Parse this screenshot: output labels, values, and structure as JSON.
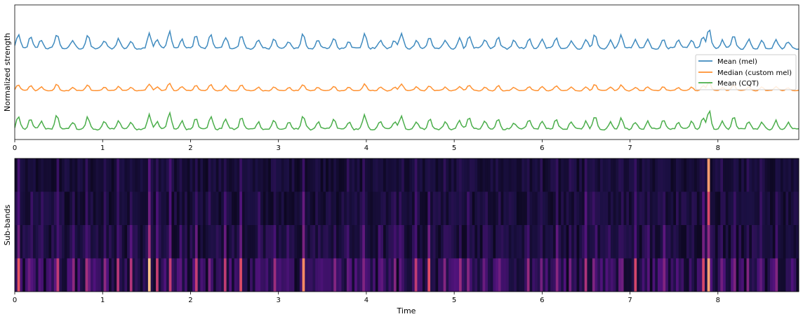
{
  "chart_data": [
    {
      "type": "line",
      "title": "",
      "xlabel": "",
      "ylabel": "Normalized strength",
      "xlim": [
        0,
        8.92
      ],
      "ylim": [
        0,
        1
      ],
      "x_ticks": [
        "0",
        "1",
        "2",
        "3",
        "4",
        "5",
        "6",
        "7",
        "8"
      ],
      "y_ticks_shown": false,
      "grid": false,
      "legend_position": "right",
      "series": [
        {
          "name": "Mean (mel)",
          "color": "#1f77b4",
          "baseline": 0.67,
          "peak_height": 0.13
        },
        {
          "name": "Median (custom mel)",
          "color": "#ff7f0e",
          "baseline": 0.36,
          "peak_height": 0.07
        },
        {
          "name": "Mean (CQT)",
          "color": "#2ca02c",
          "baseline": 0.07,
          "peak_height": 0.12
        }
      ],
      "onset_peaks": [
        {
          "t": 0.04,
          "s": 0.8
        },
        {
          "t": 0.18,
          "s": 0.65
        },
        {
          "t": 0.3,
          "s": 0.5
        },
        {
          "t": 0.48,
          "s": 0.85
        },
        {
          "t": 0.66,
          "s": 0.45
        },
        {
          "t": 0.83,
          "s": 0.75
        },
        {
          "t": 1.02,
          "s": 0.45
        },
        {
          "t": 1.18,
          "s": 0.55
        },
        {
          "t": 1.32,
          "s": 0.4
        },
        {
          "t": 1.53,
          "s": 0.9
        },
        {
          "t": 1.62,
          "s": 0.5
        },
        {
          "t": 1.76,
          "s": 1.0
        },
        {
          "t": 1.9,
          "s": 0.5
        },
        {
          "t": 2.06,
          "s": 0.75
        },
        {
          "t": 2.23,
          "s": 0.8
        },
        {
          "t": 2.4,
          "s": 0.65
        },
        {
          "t": 2.58,
          "s": 0.75
        },
        {
          "t": 2.77,
          "s": 0.45
        },
        {
          "t": 2.95,
          "s": 0.55
        },
        {
          "t": 3.12,
          "s": 0.4
        },
        {
          "t": 3.28,
          "s": 0.85
        },
        {
          "t": 3.45,
          "s": 0.45
        },
        {
          "t": 3.63,
          "s": 0.6
        },
        {
          "t": 3.8,
          "s": 0.45
        },
        {
          "t": 3.98,
          "s": 0.85
        },
        {
          "t": 4.16,
          "s": 0.5
        },
        {
          "t": 4.32,
          "s": 0.45
        },
        {
          "t": 4.4,
          "s": 0.85
        },
        {
          "t": 4.57,
          "s": 0.5
        },
        {
          "t": 4.72,
          "s": 0.65
        },
        {
          "t": 4.9,
          "s": 0.45
        },
        {
          "t": 5.06,
          "s": 0.55
        },
        {
          "t": 5.17,
          "s": 0.75
        },
        {
          "t": 5.35,
          "s": 0.5
        },
        {
          "t": 5.5,
          "s": 0.65
        },
        {
          "t": 5.68,
          "s": 0.45
        },
        {
          "t": 5.85,
          "s": 0.55
        },
        {
          "t": 6.0,
          "s": 0.5
        },
        {
          "t": 6.16,
          "s": 0.65
        },
        {
          "t": 6.33,
          "s": 0.45
        },
        {
          "t": 6.5,
          "s": 0.5
        },
        {
          "t": 6.6,
          "s": 0.8
        },
        {
          "t": 6.78,
          "s": 0.45
        },
        {
          "t": 6.9,
          "s": 0.75
        },
        {
          "t": 7.06,
          "s": 0.45
        },
        {
          "t": 7.2,
          "s": 0.5
        },
        {
          "t": 7.38,
          "s": 0.55
        },
        {
          "t": 7.55,
          "s": 0.45
        },
        {
          "t": 7.7,
          "s": 0.5
        },
        {
          "t": 7.83,
          "s": 0.65
        },
        {
          "t": 7.9,
          "s": 1.15
        },
        {
          "t": 8.05,
          "s": 0.45
        },
        {
          "t": 8.18,
          "s": 0.75
        },
        {
          "t": 8.35,
          "s": 0.5
        },
        {
          "t": 8.5,
          "s": 0.45
        },
        {
          "t": 8.66,
          "s": 0.55
        },
        {
          "t": 8.8,
          "s": 0.4
        }
      ]
    },
    {
      "type": "heatmap",
      "title": "",
      "xlabel": "Time",
      "ylabel": "Sub-bands",
      "xlim": [
        0,
        8.92
      ],
      "x_ticks": [
        "0",
        "1",
        "2",
        "3",
        "4",
        "5",
        "6",
        "7",
        "8"
      ],
      "bands": 4,
      "band_weights": [
        0.2,
        0.3,
        0.45,
        1.0
      ],
      "colormap": "magma",
      "note": "Each time column intensity follows the onset strengths of the top plot"
    }
  ]
}
